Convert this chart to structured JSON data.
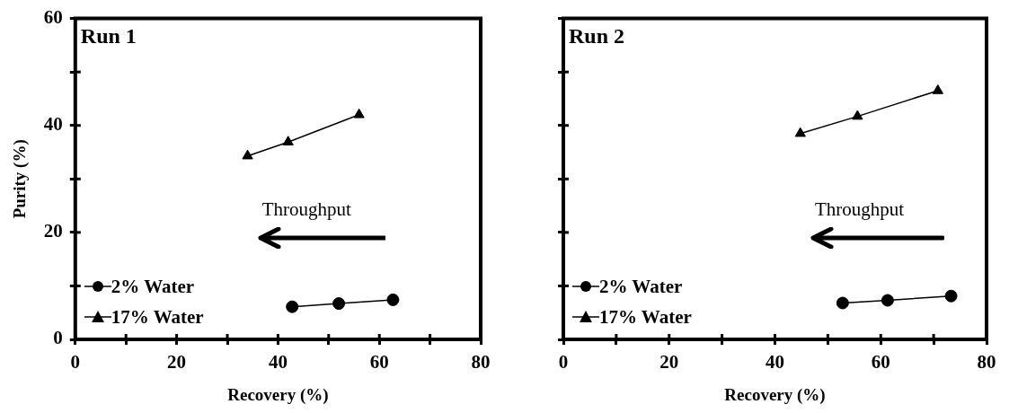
{
  "chart_data": [
    {
      "type": "line",
      "title": "Run 1",
      "xlabel": "Recovery (%)",
      "ylabel": "Purity (%)",
      "annotations": [
        "Throughput"
      ],
      "xlim": [
        0,
        80
      ],
      "xticks": [
        0,
        {
          "value": 10,
          "label": null
        },
        20,
        {
          "value": 30,
          "label": null
        },
        40,
        {
          "value": 50,
          "label": null
        },
        60,
        {
          "value": 70,
          "label": null
        },
        80
      ],
      "ylim": [
        0,
        60
      ],
      "yticks": [
        0,
        {
          "value": 10,
          "label": null
        },
        20,
        {
          "value": 30,
          "label": null
        },
        40,
        {
          "value": 50,
          "label": null
        },
        60
      ],
      "grid": false,
      "legend": "bottom left",
      "line_style": "solid",
      "series": [
        {
          "name": "2% Water",
          "color": "#000000",
          "marker": "circle",
          "x": [
            42.8,
            52,
            62.7
          ],
          "values": [
            6.1,
            6.7,
            7.4
          ]
        },
        {
          "name": "17% Water",
          "color": "#000000",
          "marker": "triangle",
          "x": [
            34,
            42,
            56
          ],
          "values": [
            34.3,
            36.9,
            42
          ]
        }
      ]
    },
    {
      "type": "line",
      "title": "Run 2",
      "xlabel": "Recovery (%)",
      "annotations": [
        "Throughput"
      ],
      "xlim": [
        0,
        80
      ],
      "xticks": [
        0,
        {
          "value": 10,
          "label": null
        },
        20,
        {
          "value": 30,
          "label": null
        },
        40,
        {
          "value": 50,
          "label": null
        },
        60,
        {
          "value": 70,
          "label": null
        },
        80
      ],
      "ylim": [
        0,
        60
      ],
      "yticks": [
        0,
        {
          "value": 10,
          "label": null
        },
        20,
        {
          "value": 30,
          "label": null
        },
        40,
        {
          "value": 50,
          "label": null
        },
        60
      ],
      "grid": false,
      "legend": "bottom left",
      "line_style": "solid",
      "tick_labels": "x",
      "series": [
        {
          "name": "2% Water",
          "color": "#000000",
          "marker": "circle",
          "x": [
            52.8,
            61.3,
            73.3
          ],
          "values": [
            6.8,
            7.3,
            8.1
          ]
        },
        {
          "name": "17% Water",
          "color": "#000000",
          "marker": "triangle",
          "x": [
            44.8,
            55.6,
            70.8
          ],
          "values": [
            38.5,
            41.7,
            46.5
          ]
        }
      ]
    }
  ]
}
